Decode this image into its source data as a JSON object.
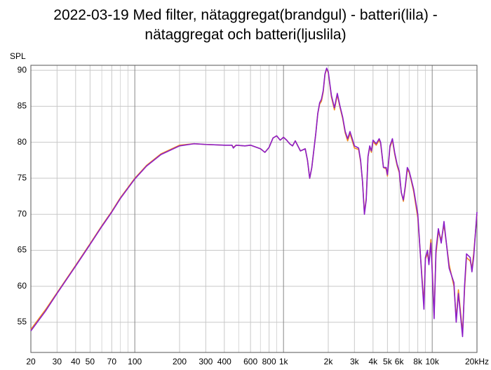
{
  "chart_data": {
    "type": "line",
    "title": "2022-03-19 Med filter, nätaggregat(brandgul) - batteri(lila) - nätaggregat och batteri(ljuslila)",
    "y_label": "SPL",
    "log_x": true,
    "grid": true,
    "xlim": [
      20,
      20000
    ],
    "ylim": [
      50.8,
      90.7
    ],
    "yticks": [
      55,
      60,
      65,
      70,
      75,
      80,
      85,
      90
    ],
    "xticks": [
      20,
      30,
      40,
      50,
      70,
      100,
      200,
      300,
      400,
      600,
      800,
      {
        "value": 1000,
        "label": "1k"
      },
      {
        "value": 2000,
        "label": "2k"
      },
      {
        "value": 3000,
        "label": "3k"
      },
      {
        "value": 4000,
        "label": "4k"
      },
      {
        "value": 5000,
        "label": "5k"
      },
      {
        "value": 6000,
        "label": "6k"
      },
      {
        "value": 8000,
        "label": "8k"
      },
      {
        "value": 10000,
        "label": "10k"
      },
      {
        "value": 20000,
        "label": "20kHz"
      }
    ],
    "minor_xticks": [
      60,
      80,
      90,
      500,
      700,
      900,
      7000,
      9000
    ],
    "x": [
      20,
      25,
      30,
      40,
      50,
      60,
      70,
      80,
      100,
      120,
      150,
      200,
      250,
      300,
      400,
      450,
      460,
      480,
      550,
      600,
      700,
      750,
      800,
      850,
      900,
      950,
      1000,
      1050,
      1100,
      1150,
      1200,
      1300,
      1400,
      1450,
      1500,
      1550,
      1650,
      1700,
      1750,
      1800,
      1850,
      1900,
      1950,
      2000,
      2100,
      2200,
      2300,
      2400,
      2500,
      2600,
      2700,
      2800,
      2900,
      3000,
      3200,
      3300,
      3400,
      3500,
      3600,
      3700,
      3800,
      3900,
      4000,
      4200,
      4400,
      4500,
      4700,
      4900,
      5000,
      5200,
      5400,
      5600,
      5800,
      6000,
      6200,
      6400,
      6600,
      6800,
      7000,
      7200,
      7500,
      8000,
      8500,
      8800,
      9000,
      9300,
      9500,
      9800,
      10000,
      10300,
      10600,
      11000,
      11500,
      12000,
      13000,
      14000,
      14500,
      15000,
      16000,
      16500,
      17000,
      18000,
      18500,
      19000,
      20000
    ],
    "series": [
      {
        "color": "#f08c1e",
        "values": [
          54.0,
          56.7,
          59.1,
          62.9,
          65.9,
          68.4,
          70.4,
          72.3,
          75.0,
          76.8,
          78.4,
          79.6,
          79.8,
          79.7,
          79.6,
          79.6,
          79.3,
          79.6,
          79.5,
          79.6,
          79.1,
          78.6,
          79.3,
          80.6,
          80.9,
          80.3,
          80.7,
          80.3,
          79.8,
          79.5,
          80.2,
          78.8,
          79.1,
          77.5,
          75.0,
          76.5,
          81.3,
          84.0,
          85.3,
          85.7,
          87.0,
          89.4,
          90.2,
          89.7,
          86.3,
          84.5,
          86.6,
          84.8,
          83.3,
          81.3,
          80.2,
          81.2,
          80.2,
          79.2,
          79.0,
          77.3,
          74.5,
          70.2,
          72.2,
          78.0,
          79.3,
          78.6,
          80.1,
          79.6,
          80.3,
          79.8,
          76.5,
          76.3,
          75.3,
          79.3,
          80.3,
          78.3,
          76.8,
          75.8,
          73.0,
          71.8,
          73.8,
          76.2,
          75.8,
          74.8,
          73.2,
          69.5,
          61.8,
          57.5,
          63.8,
          64.5,
          63.3,
          66.5,
          62.5,
          56.0,
          64.5,
          67.5,
          66.5,
          68.5,
          63.0,
          60.0,
          55.5,
          59.5,
          53.5,
          59.5,
          64.0,
          63.5,
          62.5,
          64.5,
          70.0
        ]
      },
      {
        "color": "#8c1ec8",
        "values": [
          53.8,
          56.5,
          59.0,
          62.8,
          65.8,
          68.3,
          70.3,
          72.2,
          74.9,
          76.7,
          78.3,
          79.5,
          79.8,
          79.7,
          79.6,
          79.6,
          79.2,
          79.6,
          79.5,
          79.6,
          79.1,
          78.6,
          79.3,
          80.6,
          80.9,
          80.3,
          80.7,
          80.3,
          79.8,
          79.5,
          80.2,
          78.8,
          79.1,
          77.5,
          75.0,
          76.5,
          81.3,
          84.0,
          85.5,
          86.0,
          87.2,
          89.5,
          90.3,
          89.8,
          86.5,
          84.8,
          86.8,
          85.0,
          83.5,
          81.5,
          80.5,
          81.5,
          80.5,
          79.5,
          79.2,
          77.5,
          74.5,
          70.0,
          72.0,
          78.0,
          79.5,
          78.8,
          80.3,
          79.8,
          80.5,
          80.0,
          76.5,
          76.5,
          75.5,
          79.5,
          80.5,
          78.5,
          77.0,
          76.0,
          73.0,
          72.0,
          74.0,
          76.5,
          76.0,
          75.0,
          73.5,
          70.0,
          61.5,
          56.8,
          64.0,
          65.0,
          63.0,
          66.0,
          62.0,
          55.5,
          65.0,
          68.0,
          66.0,
          69.0,
          62.5,
          60.5,
          55.0,
          59.0,
          53.0,
          60.0,
          64.5,
          64.0,
          62.0,
          64.0,
          70.3
        ]
      }
    ]
  }
}
